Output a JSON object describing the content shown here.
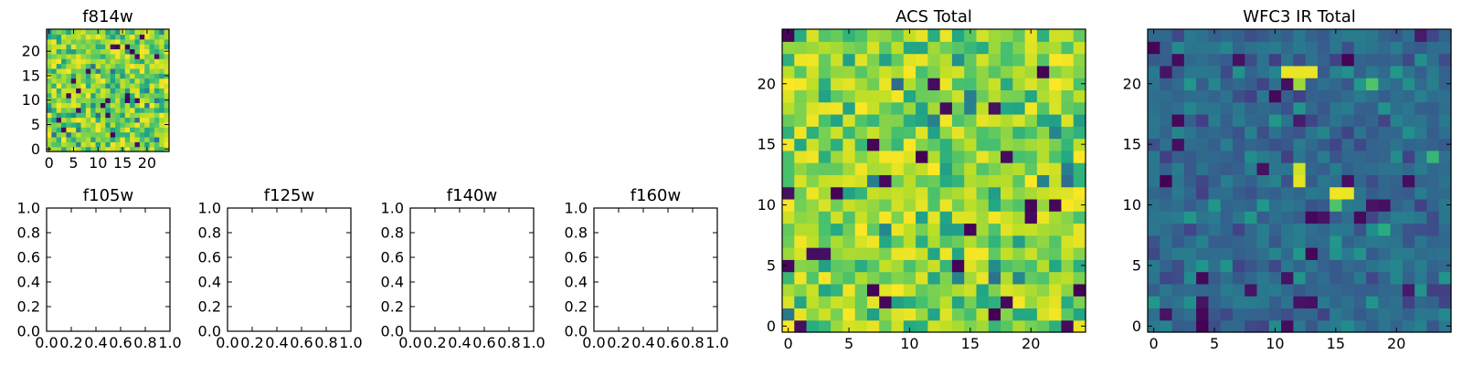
{
  "colors": {
    "frame": "#000000",
    "background": "#ffffff",
    "colormap": "viridis"
  },
  "chart_data": [
    {
      "type": "heatmap",
      "title": "f814w",
      "size": 25,
      "xticks": [
        "0",
        "5",
        "10",
        "15",
        "20"
      ],
      "yticks": [
        "0",
        "5",
        "10",
        "15",
        "20"
      ],
      "xlim": [
        -0.5,
        24.5
      ],
      "ylim": [
        -0.5,
        24.5
      ],
      "seed": 11,
      "pattern": "noise_bright"
    },
    {
      "type": "empty",
      "title": "f105w",
      "xticks": [
        "0.0",
        "0.2",
        "0.4",
        "0.6",
        "0.8",
        "1.0"
      ],
      "yticks": [
        "0.0",
        "0.2",
        "0.4",
        "0.6",
        "0.8",
        "1.0"
      ],
      "xlim": [
        0,
        1
      ],
      "ylim": [
        0,
        1
      ]
    },
    {
      "type": "empty",
      "title": "f125w",
      "xticks": [
        "0.0",
        "0.2",
        "0.4",
        "0.6",
        "0.8",
        "1.0"
      ],
      "yticks": [
        "0.0",
        "0.2",
        "0.4",
        "0.6",
        "0.8",
        "1.0"
      ],
      "xlim": [
        0,
        1
      ],
      "ylim": [
        0,
        1
      ]
    },
    {
      "type": "empty",
      "title": "f140w",
      "xticks": [
        "0.0",
        "0.2",
        "0.4",
        "0.6",
        "0.8",
        "1.0"
      ],
      "yticks": [
        "0.0",
        "0.2",
        "0.4",
        "0.6",
        "0.8",
        "1.0"
      ],
      "xlim": [
        0,
        1
      ],
      "ylim": [
        0,
        1
      ]
    },
    {
      "type": "empty",
      "title": "f160w",
      "xticks": [
        "0.0",
        "0.2",
        "0.4",
        "0.6",
        "0.8",
        "1.0"
      ],
      "yticks": [
        "0.0",
        "0.2",
        "0.4",
        "0.6",
        "0.8",
        "1.0"
      ],
      "xlim": [
        0,
        1
      ],
      "ylim": [
        0,
        1
      ]
    },
    {
      "type": "heatmap",
      "title": "ACS Total",
      "size": 25,
      "xticks": [
        "0",
        "5",
        "10",
        "15",
        "20"
      ],
      "yticks": [
        "0",
        "5",
        "10",
        "15",
        "20"
      ],
      "xlim": [
        -0.5,
        24.5
      ],
      "ylim": [
        -0.5,
        24.5
      ],
      "seed": 37,
      "pattern": "noise_bright"
    },
    {
      "type": "heatmap",
      "title": "WFC3 IR Total",
      "size": 25,
      "xticks": [
        "0",
        "5",
        "10",
        "15",
        "20"
      ],
      "yticks": [
        "0",
        "5",
        "10",
        "15",
        "20"
      ],
      "xlim": [
        -0.5,
        24.5
      ],
      "ylim": [
        -0.5,
        24.5
      ],
      "seed": 73,
      "pattern": "noise_dark",
      "hotspots": [
        {
          "x": 11,
          "y": 21,
          "v": 0.97
        },
        {
          "x": 12,
          "y": 21,
          "v": 0.97
        },
        {
          "x": 13,
          "y": 21,
          "v": 0.97
        },
        {
          "x": 12,
          "y": 20,
          "v": 0.85
        },
        {
          "x": 12,
          "y": 12,
          "v": 0.96
        },
        {
          "x": 12,
          "y": 13,
          "v": 0.93
        },
        {
          "x": 15,
          "y": 11,
          "v": 0.98
        },
        {
          "x": 16,
          "y": 11,
          "v": 0.97
        },
        {
          "x": 15,
          "y": 10,
          "v": 0.72
        },
        {
          "x": 18,
          "y": 20,
          "v": 0.72
        },
        {
          "x": 23,
          "y": 14,
          "v": 0.66
        },
        {
          "x": 19,
          "y": 8,
          "v": 0.62
        }
      ],
      "coldspots": [
        {
          "x": 4,
          "y": 0,
          "v": 0.0
        },
        {
          "x": 4,
          "y": 1,
          "v": 0.02
        },
        {
          "x": 4,
          "y": 2,
          "v": 0.05
        },
        {
          "x": 2,
          "y": 17,
          "v": 0.02
        },
        {
          "x": 2,
          "y": 15,
          "v": 0.04
        },
        {
          "x": 2,
          "y": 22,
          "v": 0.03
        },
        {
          "x": 10,
          "y": 19,
          "v": 0.02
        },
        {
          "x": 11,
          "y": 0,
          "v": 0.03
        },
        {
          "x": 13,
          "y": 9,
          "v": 0.02
        },
        {
          "x": 14,
          "y": 9,
          "v": 0.05
        },
        {
          "x": 17,
          "y": 9,
          "v": 0.03
        },
        {
          "x": 18,
          "y": 10,
          "v": 0.05
        },
        {
          "x": 19,
          "y": 10,
          "v": 0.04
        },
        {
          "x": 16,
          "y": 12,
          "v": 0.04
        }
      ]
    }
  ]
}
